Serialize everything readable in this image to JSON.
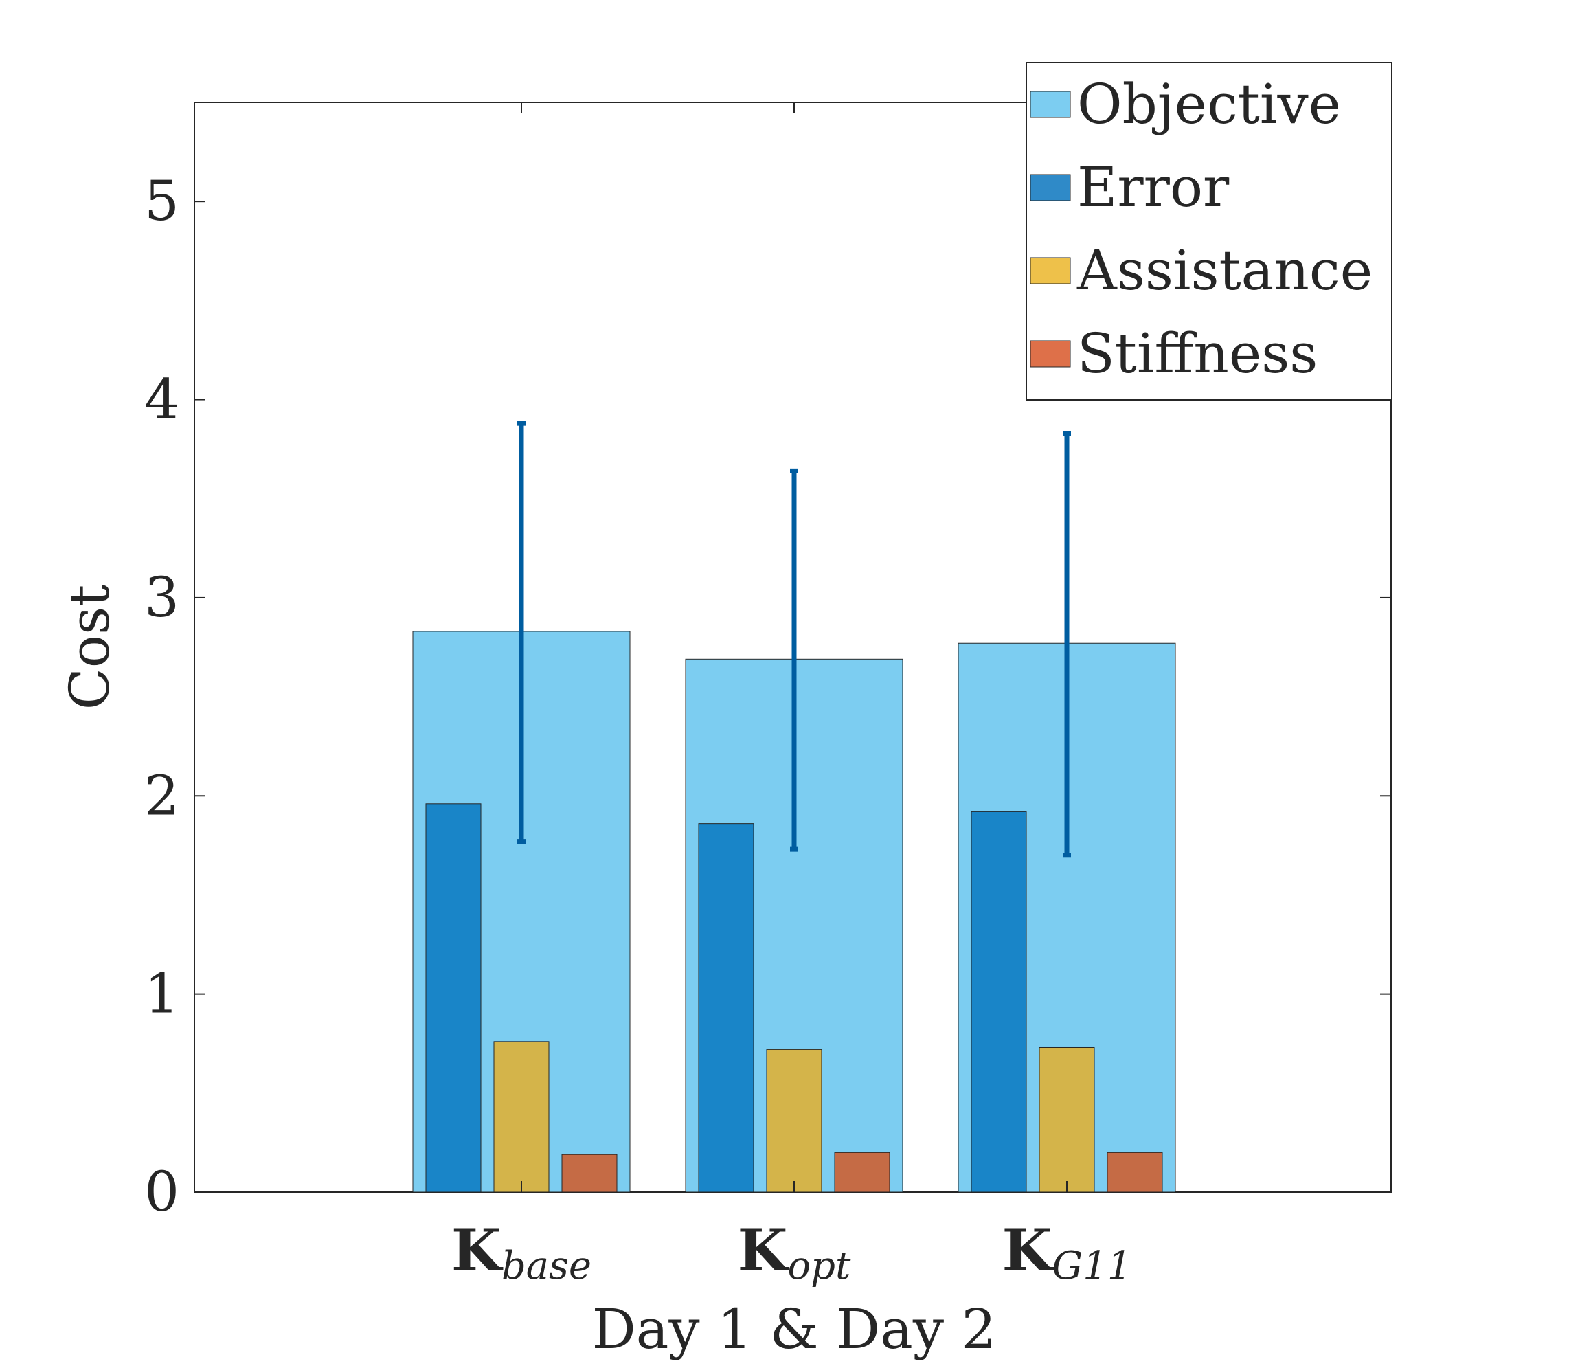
{
  "chart_data": {
    "type": "bar",
    "xlabel": "Day 1 & Day 2",
    "ylabel": "Cost",
    "ylim": [
      0,
      5.5
    ],
    "yticks": [
      0,
      1,
      2,
      3,
      4,
      5
    ],
    "grid": false,
    "legend_position": "top-right",
    "categories": [
      {
        "main": "K",
        "sub": "base"
      },
      {
        "main": "K",
        "sub": "opt"
      },
      {
        "main": "K",
        "sub": "G11"
      }
    ],
    "series": [
      {
        "name": "Objective",
        "color": "#7ccdf1",
        "values": [
          2.83,
          2.69,
          2.77
        ],
        "error_low": [
          1.77,
          1.73,
          1.7
        ],
        "error_high": [
          3.88,
          3.64,
          3.83
        ]
      },
      {
        "name": "Error",
        "color": "#1985c8",
        "values": [
          1.96,
          1.86,
          1.92
        ]
      },
      {
        "name": "Assistance",
        "color": "#d4b44a",
        "values": [
          0.76,
          0.72,
          0.73
        ]
      },
      {
        "name": "Stiffness",
        "color": "#c56b45",
        "values": [
          0.19,
          0.2,
          0.2
        ]
      }
    ],
    "legend_swatch_colors": [
      "#7ccdf1",
      "#2f8ac8",
      "#eec14a",
      "#de7049"
    ],
    "errorbar_color": "#005da0"
  }
}
